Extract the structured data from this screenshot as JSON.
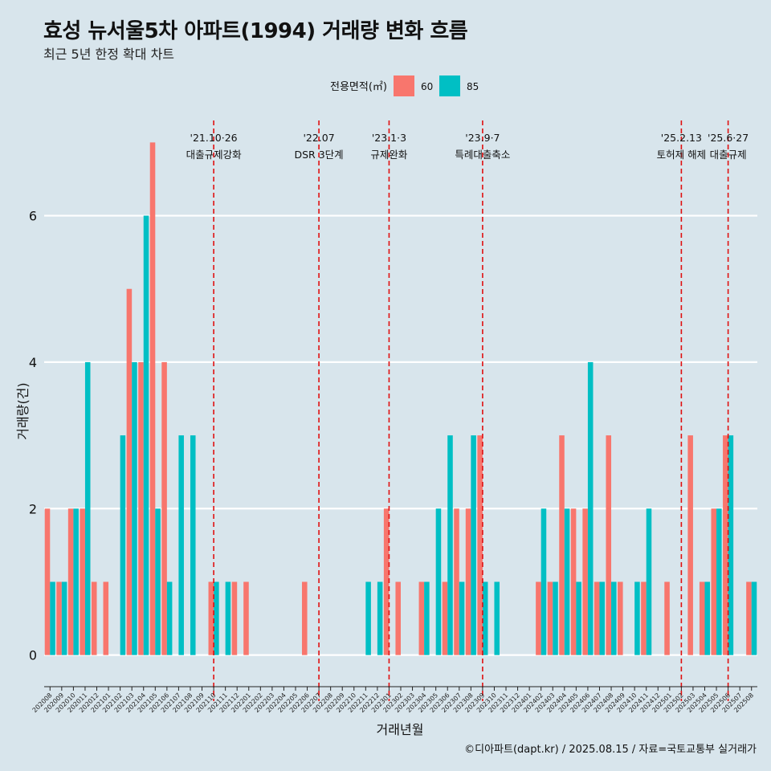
{
  "title": "효성 뉴서울5차 아파트(1994) 거래량 변화 흐름",
  "subtitle": "최근 5년 한정 확대 차트",
  "caption": "©디아파트(dapt.kr) / 2025.08.15 / 자료=국토교통부 실거래가",
  "colors": {
    "s60": "#F8766D",
    "s85": "#00BFC4",
    "event": "#e01010",
    "grid": "#ffffff"
  },
  "chart_data": {
    "type": "bar",
    "xlabel": "거래년월",
    "ylabel": "거래량(건)",
    "ylim": [
      -0.3,
      7.3
    ],
    "yticks": [
      0,
      2,
      4,
      6
    ],
    "legend": {
      "title": "전용면적(㎡)",
      "position": "top",
      "entries": [
        "60",
        "85"
      ]
    },
    "categories": [
      "202008",
      "202009",
      "202010",
      "202011",
      "202012",
      "202101",
      "202102",
      "202103",
      "202104",
      "202105",
      "202106",
      "202107",
      "202108",
      "202109",
      "202110",
      "202111",
      "202112",
      "202201",
      "202202",
      "202203",
      "202204",
      "202205",
      "202206",
      "202207",
      "202208",
      "202209",
      "202210",
      "202211",
      "202212",
      "202301",
      "202302",
      "202303",
      "202304",
      "202305",
      "202306",
      "202307",
      "202308",
      "202309",
      "202310",
      "202311",
      "202312",
      "202401",
      "202402",
      "202403",
      "202404",
      "202405",
      "202406",
      "202407",
      "202408",
      "202409",
      "202410",
      "202411",
      "202412",
      "202501",
      "202502",
      "202503",
      "202504",
      "202505",
      "202506",
      "202507",
      "202508"
    ],
    "series": [
      {
        "name": "60",
        "values": [
          2,
          1,
          2,
          2,
          1,
          1,
          0,
          5,
          4,
          7,
          4,
          0,
          0,
          0,
          1,
          0,
          1,
          1,
          0,
          0,
          0,
          0,
          1,
          0,
          0,
          0,
          0,
          0,
          0,
          2,
          1,
          0,
          1,
          0,
          1,
          2,
          2,
          3,
          0,
          0,
          0,
          0,
          1,
          1,
          3,
          2,
          2,
          1,
          3,
          1,
          0,
          1,
          0,
          1,
          0,
          3,
          1,
          2,
          3,
          0,
          1
        ]
      },
      {
        "name": "85",
        "values": [
          1,
          1,
          2,
          4,
          0,
          0,
          3,
          4,
          6,
          2,
          1,
          3,
          3,
          0,
          1,
          1,
          0,
          0,
          0,
          0,
          0,
          0,
          0,
          0,
          0,
          0,
          0,
          1,
          1,
          0,
          0,
          0,
          1,
          2,
          3,
          1,
          3,
          1,
          1,
          0,
          0,
          0,
          2,
          1,
          2,
          1,
          4,
          1,
          1,
          0,
          1,
          2,
          0,
          0,
          0,
          0,
          1,
          2,
          3,
          0,
          1
        ]
      }
    ],
    "events": [
      {
        "month": "202110",
        "line1": "'21.10·26",
        "line2": "대출규제강화"
      },
      {
        "month": "202207",
        "line1": "'22.07",
        "line2": "DSR 3단계"
      },
      {
        "month": "202301",
        "line1": "'23.1·3",
        "line2": "규제완화"
      },
      {
        "month": "202309",
        "line1": "'23.9·7",
        "line2": "특례대출축소"
      },
      {
        "month": "202502",
        "line1": "'25.2.13",
        "line2": "토허제 해제"
      },
      {
        "month": "202506",
        "line1": "'25.6·27",
        "line2": "대출규제"
      }
    ]
  }
}
